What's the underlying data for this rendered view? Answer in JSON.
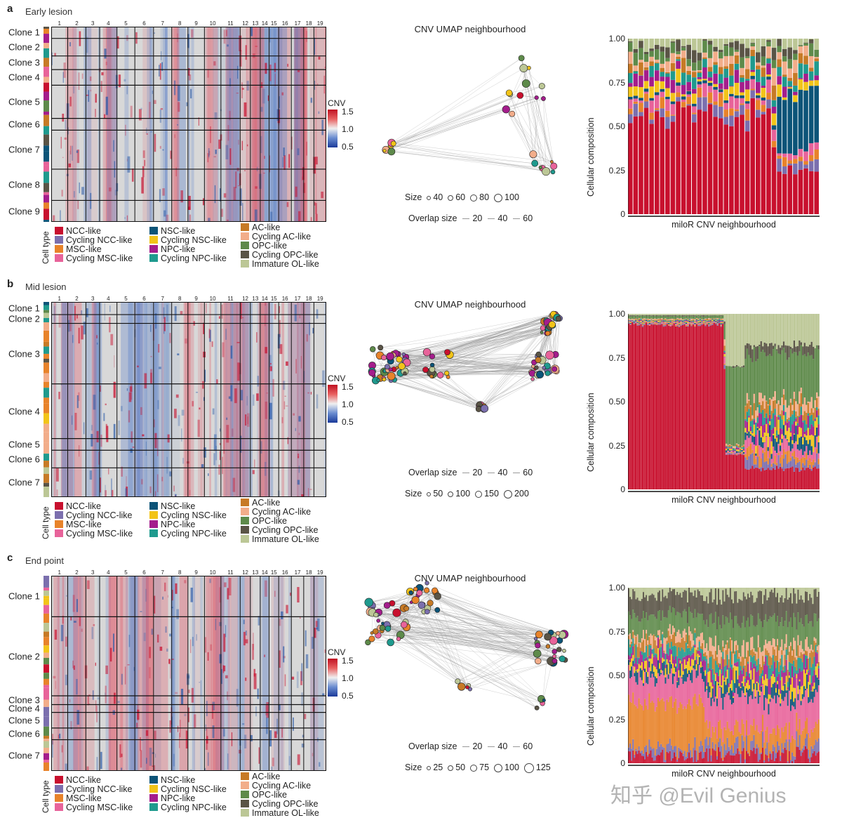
{
  "chromosomes": [
    "1",
    "2",
    "3",
    "4",
    "5",
    "6",
    "7",
    "8",
    "9",
    "10",
    "11",
    "12",
    "13",
    "14",
    "15",
    "16",
    "17",
    "18",
    "19"
  ],
  "chrom_boundaries": [
    0.06,
    0.126,
    0.176,
    0.239,
    0.304,
    0.372,
    0.438,
    0.497,
    0.557,
    0.617,
    0.687,
    0.724,
    0.76,
    0.792,
    0.827,
    0.873,
    0.918,
    0.955,
    1.0
  ],
  "cell_types": [
    {
      "label": "NCC-like",
      "color": "#c8102e"
    },
    {
      "label": "Cycling NCC-like",
      "color": "#7b6fae"
    },
    {
      "label": "MSC-like",
      "color": "#e8832a"
    },
    {
      "label": "Cycling MSC-like",
      "color": "#e8639a"
    },
    {
      "label": "NSC-like",
      "color": "#0c5478"
    },
    {
      "label": "Cycling NSC-like",
      "color": "#f2c419"
    },
    {
      "label": "NPC-like",
      "color": "#a41d8c"
    },
    {
      "label": "Cycling NPC-like",
      "color": "#1f9a8e"
    },
    {
      "label": "AC-like",
      "color": "#c77a26"
    },
    {
      "label": "Cycling AC-like",
      "color": "#f2ad8a"
    },
    {
      "label": "OPC-like",
      "color": "#5e8a4a"
    },
    {
      "label": "Cycling OPC-like",
      "color": "#5a5446"
    },
    {
      "label": "Immature OL-like",
      "color": "#bcc796"
    }
  ],
  "common": {
    "cell_type_axis": "Cell type",
    "cnv_title": "CNV",
    "cnv_ticks": [
      "1.5",
      "1.0",
      "0.5"
    ],
    "umap_title": "CNV UMAP neighbourhood",
    "size_title": "Size",
    "overlap_title": "Overlap size",
    "stack_ylabel": "Cellular composition",
    "stack_xlabel": "miloR CNV neighbourhood",
    "stack_ticks": [
      "1.00",
      "0.75",
      "0.50",
      "0.25",
      "0"
    ]
  },
  "panels": [
    {
      "letter": "a",
      "title": "Early lesion",
      "clones": [
        {
          "label": "Clone 1",
          "start": 0.0,
          "end": 0.06
        },
        {
          "label": "Clone 2",
          "start": 0.06,
          "end": 0.15
        },
        {
          "label": "Clone 3",
          "start": 0.15,
          "end": 0.22
        },
        {
          "label": "Clone 4",
          "start": 0.22,
          "end": 0.3
        },
        {
          "label": "Clone 5",
          "start": 0.3,
          "end": 0.47
        },
        {
          "label": "Clone 6",
          "start": 0.47,
          "end": 0.53
        },
        {
          "label": "Clone 7",
          "start": 0.53,
          "end": 0.73
        },
        {
          "label": "Clone 8",
          "start": 0.73,
          "end": 0.89
        },
        {
          "label": "Clone 9",
          "start": 0.89,
          "end": 1.0
        }
      ],
      "size_legend": [
        "40",
        "60",
        "80",
        "100"
      ],
      "overlap_legend": [
        "20",
        "40",
        "60"
      ],
      "legend_order": "size-first",
      "n_bars": 36
    },
    {
      "letter": "b",
      "title": "Mid lesion",
      "clones": [
        {
          "label": "Clone 1",
          "start": 0.0,
          "end": 0.065
        },
        {
          "label": "Clone 2",
          "start": 0.065,
          "end": 0.11
        },
        {
          "label": "Clone 3",
          "start": 0.11,
          "end": 0.42
        },
        {
          "label": "Clone 4",
          "start": 0.42,
          "end": 0.7
        },
        {
          "label": "Clone 5",
          "start": 0.7,
          "end": 0.76
        },
        {
          "label": "Clone 6",
          "start": 0.76,
          "end": 0.85
        },
        {
          "label": "Clone 7",
          "start": 0.85,
          "end": 1.0
        }
      ],
      "size_legend": [
        "50",
        "100",
        "150",
        "200"
      ],
      "overlap_legend": [
        "20",
        "40",
        "60"
      ],
      "legend_order": "overlap-first",
      "n_bars": 110
    },
    {
      "letter": "c",
      "title": "End point",
      "clones": [
        {
          "label": "Clone 1",
          "start": 0.0,
          "end": 0.21
        },
        {
          "label": "Clone 2",
          "start": 0.21,
          "end": 0.615
        },
        {
          "label": "Clone 3",
          "start": 0.615,
          "end": 0.66
        },
        {
          "label": "Clone 4",
          "start": 0.66,
          "end": 0.7
        },
        {
          "label": "Clone 5",
          "start": 0.7,
          "end": 0.78
        },
        {
          "label": "Clone 6",
          "start": 0.78,
          "end": 0.84
        },
        {
          "label": "Clone 7",
          "start": 0.84,
          "end": 1.0
        }
      ],
      "size_legend": [
        "25",
        "50",
        "75",
        "100",
        "125"
      ],
      "overlap_legend": [
        "20",
        "40",
        "60"
      ],
      "legend_order": "overlap-first",
      "n_bars": 130
    }
  ],
  "watermark": "知乎 @Evil Genius"
}
